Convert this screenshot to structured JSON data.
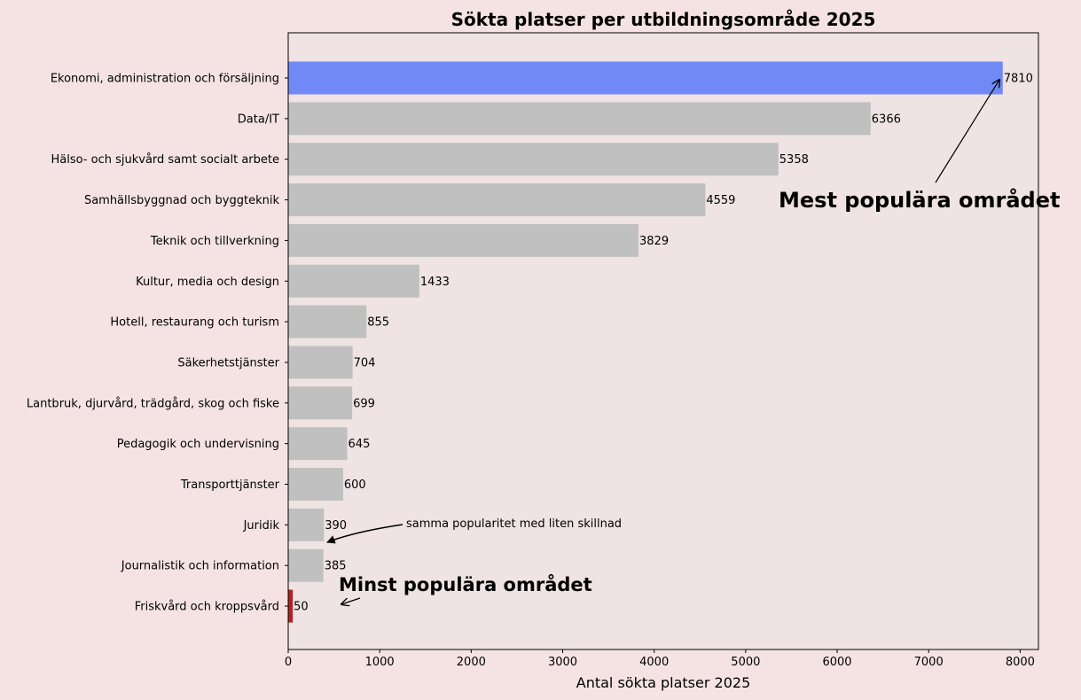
{
  "chart_data": {
    "type": "bar",
    "orientation": "horizontal",
    "title": "Sökta platser per utbildningsområde 2025",
    "xlabel": "Antal sökta platser 2025",
    "ylabel": "",
    "xlim": [
      0,
      8200
    ],
    "xticks": [
      "0",
      "1000",
      "2000",
      "3000",
      "4000",
      "5000",
      "6000",
      "7000",
      "8000"
    ],
    "categories": [
      "Ekonomi, administration och försäljning",
      "Data/IT",
      "Hälso- och sjukvård samt socialt arbete",
      "Samhällsbyggnad och byggteknik",
      "Teknik och tillverkning",
      "Kultur, media och design",
      "Hotell, restaurang och turism",
      "Säkerhetstjänster",
      "Lantbruk, djurvård, trädgård, skog och fiske",
      "Pedagogik och undervisning",
      "Transporttjänster",
      "Juridik",
      "Journalistik och information",
      "Friskvård och kroppsvård"
    ],
    "values": [
      7810,
      6366,
      5358,
      4559,
      3829,
      1433,
      855,
      704,
      699,
      645,
      600,
      390,
      385,
      50
    ],
    "value_labels": [
      "7810",
      "6366",
      "5358",
      "4559",
      "3829",
      "1433",
      "855",
      "704",
      "699",
      "645",
      "600",
      "390",
      "385",
      "50"
    ],
    "bar_colors": [
      "#7089f5",
      "#c0c0c0",
      "#c0c0c0",
      "#c0c0c0",
      "#c0c0c0",
      "#c0c0c0",
      "#c0c0c0",
      "#c0c0c0",
      "#c0c0c0",
      "#c0c0c0",
      "#c0c0c0",
      "#c0c0c0",
      "#c0c0c0",
      "#b22222"
    ],
    "grid": false,
    "annotations": {
      "most_popular": "Mest populära området",
      "least_popular": "Minst populära området",
      "similar": "samma popularitet med liten skillnad"
    }
  },
  "colors": {
    "figure_background": "#f5e3e3",
    "axes_background": "#efe3e3",
    "highlight_max": "#7089f5",
    "highlight_min": "#b22222",
    "default_bar": "#c0c0c0"
  }
}
